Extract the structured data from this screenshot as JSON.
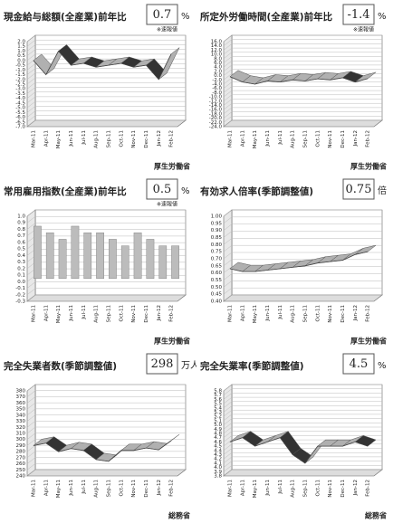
{
  "chart_data": [
    {
      "type": "line",
      "title": "現金給与総額(全産業)前年比",
      "headline": "0.7",
      "unit": "%",
      "note": "※速報値",
      "source": "厚生労働省",
      "categories": [
        "Mar-11",
        "Apr-11",
        "May-11",
        "Jun-11",
        "Jul-11",
        "Aug-11",
        "Sep-11",
        "Oct-11",
        "Nov-11",
        "Dec-11",
        "Jan-12",
        "Feb-12"
      ],
      "values": [
        0.0,
        -1.5,
        1.0,
        -0.5,
        -0.3,
        -0.7,
        -0.5,
        -0.3,
        -0.7,
        -0.5,
        -2.0,
        0.7
      ],
      "ylim": [
        -7,
        2
      ],
      "color": "#b0b0b0",
      "yticks": [
        {
          "value": 2,
          "label": "2.0"
        },
        1.5,
        {
          "value": 1,
          "label": "1.0"
        },
        0.5,
        {
          "value": 0,
          "label": "0.0"
        },
        -0.5,
        {
          "value": -1,
          "label": "-1.0"
        },
        -1.5,
        {
          "value": -2,
          "label": "-2.0"
        },
        -2.5,
        {
          "value": -3,
          "label": "-3.0"
        },
        -3.5,
        {
          "value": -4,
          "label": "-4.0"
        },
        -4.5,
        {
          "value": -5,
          "label": "-5.0"
        },
        -5.5,
        {
          "value": -6,
          "label": "-6.0"
        },
        -6.5,
        {
          "value": -7,
          "label": "-7.0"
        }
      ]
    },
    {
      "type": "line",
      "title": "所定外労働時間(全産業)前年比",
      "headline": "-1.4",
      "unit": "%",
      "note": "※速報値",
      "source": "厚生労働省",
      "categories": [
        "Mar-11",
        "Apr-11",
        "May-11",
        "Jun-11",
        "Jul-11",
        "Aug-11",
        "Sep-11",
        "Oct-11",
        "Nov-11",
        "Dec-11",
        "Jan-12",
        "Feb-12"
      ],
      "values": [
        -0.5,
        -3.0,
        -4.0,
        -2.5,
        -3.0,
        -2.0,
        -2.5,
        -1.5,
        -2.0,
        -1.0,
        -3.0,
        -1.4
      ],
      "ylim": [
        -24,
        16
      ],
      "color": "#b0b0b0",
      "yticks": [
        {
          "value": 16,
          "label": "16.0"
        },
        {
          "value": 14,
          "label": "14.0"
        },
        {
          "value": 12,
          "label": "12.0"
        },
        {
          "value": 10,
          "label": "10.0"
        },
        {
          "value": 8,
          "label": "8.0"
        },
        {
          "value": 6,
          "label": "6.0"
        },
        {
          "value": 4,
          "label": "4.0"
        },
        {
          "value": 2,
          "label": "2.0"
        },
        {
          "value": 0,
          "label": "0.0"
        },
        {
          "value": -2,
          "label": "-2.0"
        },
        {
          "value": -4,
          "label": "-4.0"
        },
        {
          "value": -6,
          "label": "-6.0"
        },
        {
          "value": -8,
          "label": "-8.0"
        },
        {
          "value": -10,
          "label": "-10.0"
        },
        {
          "value": -12,
          "label": "-12.0"
        },
        {
          "value": -14,
          "label": "-14.0"
        },
        {
          "value": -16,
          "label": "-16.0"
        },
        {
          "value": -18,
          "label": "-18.0"
        },
        {
          "value": -20,
          "label": "-20.0"
        },
        {
          "value": -22,
          "label": "-22.0"
        },
        {
          "value": -24,
          "label": "-24.0"
        }
      ]
    },
    {
      "type": "bar",
      "title": "常用雇用指数(全産業)前年比",
      "headline": "0.5",
      "unit": "%",
      "note": "※速報値",
      "source": "厚生労働省",
      "categories": [
        "Mar-11",
        "Apr-11",
        "May-11",
        "Jun-11",
        "Jul-11",
        "Aug-11",
        "Sep-11",
        "Oct-11",
        "Nov-11",
        "Dec-11",
        "Jan-12",
        "Feb-12"
      ],
      "values": [
        0.8,
        0.7,
        0.6,
        0.8,
        0.7,
        0.7,
        0.6,
        0.5,
        0.7,
        0.6,
        0.5,
        0.5
      ],
      "ylim": [
        -0.3,
        1
      ],
      "color": "#bcbcbc",
      "yticks": [
        {
          "value": 1,
          "label": "1.0"
        },
        0.9,
        0.8,
        0.7,
        0.6,
        0.5,
        0.4,
        0.3,
        0.2,
        0.1,
        {
          "value": 0,
          "label": "0.0"
        },
        -0.1,
        -0.2,
        -0.3
      ]
    },
    {
      "type": "line",
      "title": "有効求人倍率(季節調整値)",
      "headline": "0.75",
      "unit": "倍",
      "source": "厚生労働省",
      "categories": [
        "Mar-11",
        "Apr-11",
        "May-11",
        "Jun-11",
        "Jul-11",
        "Aug-11",
        "Sep-11",
        "Oct-11",
        "Nov-11",
        "Dec-11",
        "Jan-12",
        "Feb-12"
      ],
      "values": [
        0.63,
        0.61,
        0.61,
        0.62,
        0.63,
        0.64,
        0.65,
        0.67,
        0.68,
        0.69,
        0.73,
        0.75
      ],
      "ylim": [
        0.4,
        1
      ],
      "color": "#b0b0b0",
      "yticks": [
        {
          "value": 1,
          "label": "1.00"
        },
        0.95,
        {
          "value": 0.9,
          "label": "0.90"
        },
        0.85,
        {
          "value": 0.8,
          "label": "0.80"
        },
        0.75,
        {
          "value": 0.7,
          "label": "0.70"
        },
        0.65,
        {
          "value": 0.6,
          "label": "0.60"
        },
        0.55,
        {
          "value": 0.5,
          "label": "0.50"
        },
        0.45,
        {
          "value": 0.4,
          "label": "0.40"
        }
      ]
    },
    {
      "type": "line",
      "title": "完全失業者数(季節調整値)",
      "headline": "298",
      "unit": "万人",
      "source": "総務省",
      "categories": [
        "Mar-11",
        "Apr-11",
        "May-11",
        "Jun-11",
        "Jul-11",
        "Aug-11",
        "Sep-11",
        "Oct-11",
        "Nov-11",
        "Dec-11",
        "Jan-12",
        "Feb-12"
      ],
      "values": [
        290,
        294,
        280,
        285,
        282,
        267,
        264,
        282,
        282,
        286,
        283,
        298
      ],
      "ylim": [
        240,
        380
      ],
      "color": "#b0b0b0",
      "yticks": [
        380,
        370,
        360,
        350,
        340,
        330,
        320,
        310,
        300,
        290,
        280,
        270,
        260,
        250,
        240
      ]
    },
    {
      "type": "line",
      "title": "完全失業率(季節調整値)",
      "headline": "4.5",
      "unit": "%",
      "source": "総務省",
      "categories": [
        "Mar-11",
        "Apr-11",
        "May-11",
        "Jun-11",
        "Jul-11",
        "Aug-11",
        "Sep-11",
        "Oct-11",
        "Nov-11",
        "Dec-11",
        "Jan-12",
        "Feb-12"
      ],
      "values": [
        4.6,
        4.7,
        4.5,
        4.6,
        4.7,
        4.3,
        4.1,
        4.5,
        4.5,
        4.5,
        4.6,
        4.5
      ],
      "ylim": [
        3.8,
        5.8
      ],
      "color": "#b0b0b0",
      "yticks": [
        5.8,
        5.7,
        5.6,
        5.5,
        5.4,
        5.3,
        5.2,
        5.1,
        {
          "value": 5,
          "label": "5.0"
        },
        4.9,
        4.8,
        4.7,
        4.6,
        4.5,
        4.4,
        4.3,
        4.2,
        4.1,
        {
          "value": 4,
          "label": "4.0"
        },
        3.9,
        3.8
      ]
    }
  ]
}
